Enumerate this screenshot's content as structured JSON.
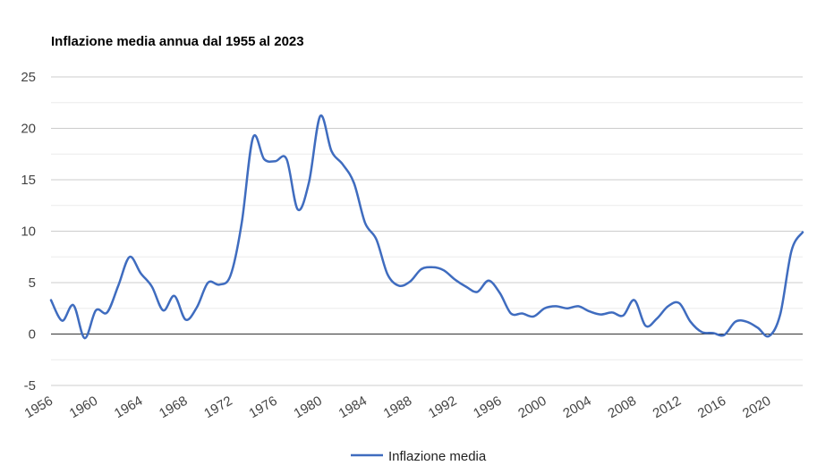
{
  "chart_data": {
    "type": "line",
    "title": "Inflazione media annua dal 1955 al 2023",
    "xlabel": "",
    "ylabel": "",
    "xlim": [
      1956,
      2023
    ],
    "ylim": [
      -5,
      25
    ],
    "yticks": [
      -5,
      0,
      5,
      10,
      15,
      20,
      25
    ],
    "xticks": [
      1956,
      1960,
      1964,
      1968,
      1972,
      1976,
      1980,
      1984,
      1988,
      1992,
      1996,
      2000,
      2004,
      2008,
      2012,
      2016,
      2020
    ],
    "grid": true,
    "legend_position": "bottom",
    "series": [
      {
        "name": "Inflazione media",
        "color": "#3f6cbf",
        "x": [
          1956,
          1957,
          1958,
          1959,
          1960,
          1961,
          1962,
          1963,
          1964,
          1965,
          1966,
          1967,
          1968,
          1969,
          1970,
          1971,
          1972,
          1973,
          1974,
          1975,
          1976,
          1977,
          1978,
          1979,
          1980,
          1981,
          1982,
          1983,
          1984,
          1985,
          1986,
          1987,
          1988,
          1989,
          1990,
          1991,
          1992,
          1993,
          1994,
          1995,
          1996,
          1997,
          1998,
          1999,
          2000,
          2001,
          2002,
          2003,
          2004,
          2005,
          2006,
          2007,
          2008,
          2009,
          2010,
          2011,
          2012,
          2013,
          2014,
          2015,
          2016,
          2017,
          2018,
          2019,
          2020,
          2021,
          2022,
          2023
        ],
        "y": [
          3.3,
          1.3,
          2.8,
          -0.4,
          2.3,
          2.1,
          4.7,
          7.5,
          5.9,
          4.6,
          2.3,
          3.7,
          1.4,
          2.6,
          5.0,
          4.8,
          5.7,
          10.8,
          19.1,
          17.0,
          16.8,
          17.0,
          12.1,
          14.8,
          21.2,
          17.8,
          16.5,
          14.7,
          10.8,
          9.2,
          5.8,
          4.7,
          5.1,
          6.3,
          6.5,
          6.2,
          5.3,
          4.6,
          4.1,
          5.2,
          4.0,
          2.0,
          2.0,
          1.7,
          2.5,
          2.7,
          2.5,
          2.7,
          2.2,
          1.9,
          2.1,
          1.8,
          3.3,
          0.8,
          1.5,
          2.7,
          3.0,
          1.2,
          0.2,
          0.1,
          -0.1,
          1.2,
          1.2,
          0.6,
          -0.2,
          1.9,
          8.1,
          9.9
        ]
      }
    ]
  }
}
